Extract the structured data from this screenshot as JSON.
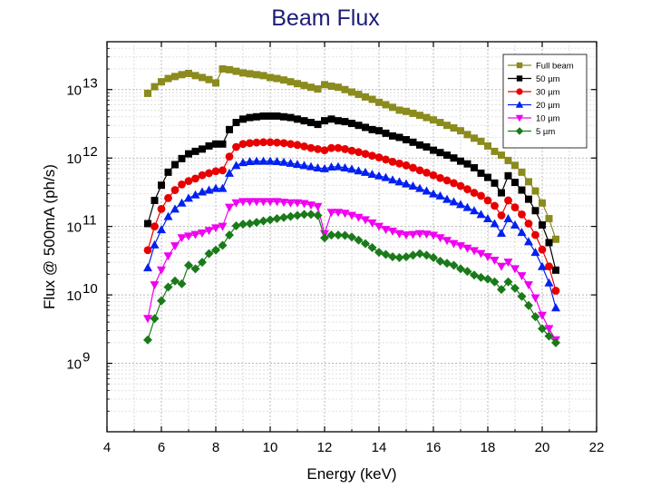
{
  "chart_data": {
    "type": "scatter",
    "title": "Beam Flux",
    "xlabel": "Energy (keV)",
    "ylabel": "Flux @ 500mA (ph/s)",
    "xlim": [
      4,
      22
    ],
    "ylim": [
      100000000.0,
      50000000000000.0
    ],
    "y_scale": "log",
    "grid": true,
    "legend_position": "top-right",
    "x_ticks": [
      "4",
      "6",
      "8",
      "10",
      "12",
      "14",
      "16",
      "18",
      "20",
      "22"
    ],
    "y_ticks": [
      {
        "base": "10",
        "exp": "9",
        "value": 1000000000.0
      },
      {
        "base": "10",
        "exp": "10",
        "value": 10000000000.0
      },
      {
        "base": "10",
        "exp": "11",
        "value": 100000000000.0
      },
      {
        "base": "10",
        "exp": "12",
        "value": 1000000000000.0
      },
      {
        "base": "10",
        "exp": "13",
        "value": 10000000000000.0
      }
    ],
    "x": [
      5.5,
      5.75,
      6.0,
      6.25,
      6.5,
      6.75,
      7.0,
      7.25,
      7.5,
      7.75,
      8.0,
      8.25,
      8.5,
      8.75,
      9.0,
      9.25,
      9.5,
      9.75,
      10.0,
      10.25,
      10.5,
      10.75,
      11.0,
      11.25,
      11.5,
      11.75,
      12.0,
      12.25,
      12.5,
      12.75,
      13.0,
      13.25,
      13.5,
      13.75,
      14.0,
      14.25,
      14.5,
      14.75,
      15.0,
      15.25,
      15.5,
      15.75,
      16.0,
      16.25,
      16.5,
      16.75,
      17.0,
      17.25,
      17.5,
      17.75,
      18.0,
      18.25,
      18.5,
      18.75,
      19.0,
      19.25,
      19.5,
      19.75,
      20.0,
      20.25,
      20.5
    ],
    "series": [
      {
        "name": "Full beam",
        "color": "#8b8b1e",
        "marker": "square",
        "values": [
          8800000000000.0,
          11000000000000.0,
          13000000000000.0,
          14500000000000.0,
          15500000000000.0,
          16500000000000.0,
          17200000000000.0,
          16000000000000.0,
          15000000000000.0,
          14000000000000.0,
          12500000000000.0,
          20000000000000.0,
          19500000000000.0,
          18500000000000.0,
          17500000000000.0,
          17000000000000.0,
          16500000000000.0,
          16000000000000.0,
          15000000000000.0,
          14500000000000.0,
          13800000000000.0,
          13000000000000.0,
          12200000000000.0,
          11500000000000.0,
          10800000000000.0,
          10200000000000.0,
          11800000000000.0,
          11200000000000.0,
          10800000000000.0,
          10000000000000.0,
          9200000000000.0,
          8500000000000.0,
          7800000000000.0,
          7200000000000.0,
          6500000000000.0,
          6000000000000.0,
          5500000000000.0,
          5000000000000.0,
          4800000000000.0,
          4500000000000.0,
          4200000000000.0,
          3900000000000.0,
          3600000000000.0,
          3300000000000.0,
          3000000000000.0,
          2750000000000.0,
          2500000000000.0,
          2200000000000.0,
          1950000000000.0,
          1750000000000.0,
          1500000000000.0,
          1250000000000.0,
          1100000000000.0,
          920000000000.0,
          780000000000.0,
          620000000000.0,
          450000000000.0,
          330000000000.0,
          220000000000.0,
          130000000000.0,
          65000000000.0
        ]
      },
      {
        "name": "50 µm",
        "color": "#000000",
        "marker": "square",
        "values": [
          110000000000.0,
          240000000000.0,
          400000000000.0,
          620000000000.0,
          800000000000.0,
          980000000000.0,
          1150000000000.0,
          1250000000000.0,
          1350000000000.0,
          1500000000000.0,
          1600000000000.0,
          1600000000000.0,
          2600000000000.0,
          3300000000000.0,
          3700000000000.0,
          3900000000000.0,
          4000000000000.0,
          4100000000000.0,
          4100000000000.0,
          4100000000000.0,
          4000000000000.0,
          3900000000000.0,
          3700000000000.0,
          3500000000000.0,
          3300000000000.0,
          3100000000000.0,
          3500000000000.0,
          3700000000000.0,
          3500000000000.0,
          3400000000000.0,
          3200000000000.0,
          3000000000000.0,
          2800000000000.0,
          2600000000000.0,
          2500000000000.0,
          2300000000000.0,
          2100000000000.0,
          2000000000000.0,
          1850000000000.0,
          1700000000000.0,
          1550000000000.0,
          1450000000000.0,
          1300000000000.0,
          1200000000000.0,
          1100000000000.0,
          1000000000000.0,
          900000000000.0,
          820000000000.0,
          720000000000.0,
          600000000000.0,
          520000000000.0,
          430000000000.0,
          310000000000.0,
          550000000000.0,
          440000000000.0,
          340000000000.0,
          250000000000.0,
          170000000000.0,
          105000000000.0,
          58000000000.0,
          23000000000.0
        ]
      },
      {
        "name": "30 µm",
        "color": "#e80000",
        "marker": "circle",
        "values": [
          45000000000.0,
          100000000000.0,
          180000000000.0,
          260000000000.0,
          340000000000.0,
          410000000000.0,
          460000000000.0,
          500000000000.0,
          560000000000.0,
          600000000000.0,
          640000000000.0,
          660000000000.0,
          1050000000000.0,
          1450000000000.0,
          1600000000000.0,
          1650000000000.0,
          1680000000000.0,
          1700000000000.0,
          1700000000000.0,
          1680000000000.0,
          1650000000000.0,
          1600000000000.0,
          1550000000000.0,
          1480000000000.0,
          1400000000000.0,
          1350000000000.0,
          1300000000000.0,
          1400000000000.0,
          1400000000000.0,
          1350000000000.0,
          1280000000000.0,
          1220000000000.0,
          1150000000000.0,
          1080000000000.0,
          1020000000000.0,
          950000000000.0,
          880000000000.0,
          830000000000.0,
          780000000000.0,
          720000000000.0,
          660000000000.0,
          610000000000.0,
          560000000000.0,
          510000000000.0,
          470000000000.0,
          430000000000.0,
          390000000000.0,
          350000000000.0,
          310000000000.0,
          280000000000.0,
          240000000000.0,
          200000000000.0,
          145000000000.0,
          240000000000.0,
          190000000000.0,
          150000000000.0,
          110000000000.0,
          75000000000.0,
          46000000000.0,
          26000000000.0,
          11500000000.0
        ]
      },
      {
        "name": "20 µm",
        "color": "#0020f0",
        "marker": "triangle-up",
        "values": [
          25000000000.0,
          54000000000.0,
          90000000000.0,
          140000000000.0,
          180000000000.0,
          220000000000.0,
          260000000000.0,
          290000000000.0,
          320000000000.0,
          340000000000.0,
          360000000000.0,
          360000000000.0,
          600000000000.0,
          780000000000.0,
          860000000000.0,
          890000000000.0,
          900000000000.0,
          900000000000.0,
          900000000000.0,
          890000000000.0,
          870000000000.0,
          840000000000.0,
          810000000000.0,
          780000000000.0,
          750000000000.0,
          720000000000.0,
          700000000000.0,
          740000000000.0,
          750000000000.0,
          720000000000.0,
          690000000000.0,
          650000000000.0,
          620000000000.0,
          580000000000.0,
          550000000000.0,
          520000000000.0,
          480000000000.0,
          450000000000.0,
          420000000000.0,
          390000000000.0,
          360000000000.0,
          330000000000.0,
          300000000000.0,
          280000000000.0,
          250000000000.0,
          230000000000.0,
          210000000000.0,
          190000000000.0,
          170000000000.0,
          150000000000.0,
          130000000000.0,
          110000000000.0,
          80000000000.0,
          130000000000.0,
          105000000000.0,
          82000000000.0,
          60000000000.0,
          42000000000.0,
          26000000000.0,
          15000000000.0,
          6500000000.0
        ]
      },
      {
        "name": "10 µm",
        "color": "#f000f0",
        "marker": "triangle-down",
        "values": [
          4500000000.0,
          14000000000.0,
          23000000000.0,
          37000000000.0,
          52000000000.0,
          68000000000.0,
          72000000000.0,
          76000000000.0,
          80000000000.0,
          87000000000.0,
          95000000000.0,
          100000000000.0,
          190000000000.0,
          220000000000.0,
          230000000000.0,
          230000000000.0,
          230000000000.0,
          230000000000.0,
          230000000000.0,
          230000000000.0,
          225000000000.0,
          220000000000.0,
          220000000000.0,
          215000000000.0,
          205000000000.0,
          195000000000.0,
          78000000000.0,
          160000000000.0,
          160000000000.0,
          155000000000.0,
          145000000000.0,
          135000000000.0,
          125000000000.0,
          112000000000.0,
          100000000000.0,
          90000000000.0,
          85000000000.0,
          78000000000.0,
          75000000000.0,
          76000000000.0,
          78000000000.0,
          77000000000.0,
          74000000000.0,
          68000000000.0,
          62000000000.0,
          56000000000.0,
          52000000000.0,
          48000000000.0,
          44000000000.0,
          40000000000.0,
          36000000000.0,
          32000000000.0,
          26000000000.0,
          30000000000.0,
          24000000000.0,
          19000000000.0,
          14000000000.0,
          9000000000.0,
          5000000000.0,
          3200000000.0,
          2200000000.0
        ]
      },
      {
        "name": "5 µm",
        "color": "#1a7a1a",
        "marker": "diamond",
        "values": [
          2200000000.0,
          4500000000.0,
          8200000000.0,
          13000000000.0,
          16000000000.0,
          14500000000.0,
          27000000000.0,
          24000000000.0,
          30000000000.0,
          40000000000.0,
          45000000000.0,
          53000000000.0,
          75000000000.0,
          102000000000.0,
          108000000000.0,
          110000000000.0,
          115000000000.0,
          120000000000.0,
          125000000000.0,
          130000000000.0,
          135000000000.0,
          140000000000.0,
          145000000000.0,
          150000000000.0,
          150000000000.0,
          145000000000.0,
          68000000000.0,
          75000000000.0,
          75000000000.0,
          74000000000.0,
          70000000000.0,
          63000000000.0,
          56000000000.0,
          49000000000.0,
          42000000000.0,
          39000000000.0,
          36000000000.0,
          35000000000.0,
          36000000000.0,
          38000000000.0,
          40000000000.0,
          38000000000.0,
          35000000000.0,
          31000000000.0,
          29000000000.0,
          27000000000.0,
          24000000000.0,
          22000000000.0,
          19500000000.0,
          18000000000.0,
          17000000000.0,
          15500000000.0,
          12000000000.0,
          15500000000.0,
          12500000000.0,
          9500000000.0,
          7000000000.0,
          4800000000.0,
          3200000000.0,
          2500000000.0,
          2000000000.0
        ]
      }
    ]
  }
}
